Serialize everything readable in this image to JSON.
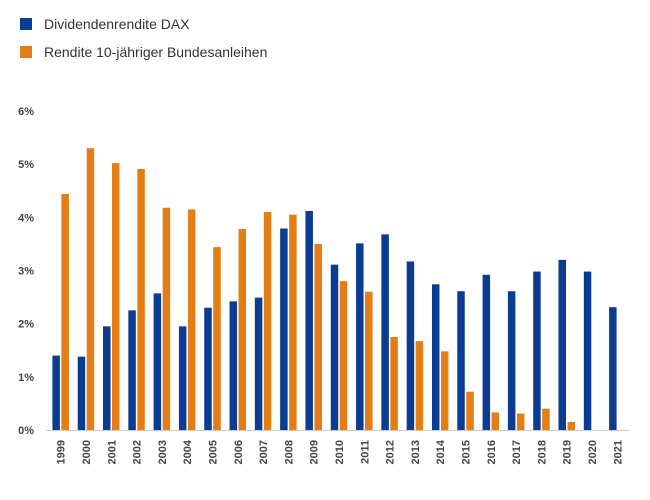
{
  "chart_data": {
    "type": "bar",
    "categories": [
      "1999",
      "2000",
      "2001",
      "2002",
      "2003",
      "2004",
      "2005",
      "2006",
      "2007",
      "2008",
      "2009",
      "2010",
      "2011",
      "2012",
      "2013",
      "2014",
      "2015",
      "2016",
      "2017",
      "2018",
      "2019",
      "2020",
      "2021"
    ],
    "series": [
      {
        "name": "Dividendenrendite DAX",
        "color": "#0a3d91",
        "values": [
          1.4,
          1.38,
          1.95,
          2.25,
          2.57,
          1.95,
          2.3,
          2.42,
          2.49,
          3.79,
          4.12,
          3.11,
          3.51,
          3.68,
          3.17,
          2.74,
          2.61,
          2.92,
          2.61,
          2.98,
          3.2,
          2.98,
          2.31
        ]
      },
      {
        "name": "Rendite 10-jähriger Bundesanleihen",
        "color": "#e37d15",
        "values": [
          4.44,
          5.3,
          5.02,
          4.91,
          4.18,
          4.15,
          3.44,
          3.78,
          4.1,
          4.05,
          3.5,
          2.8,
          2.6,
          1.75,
          1.67,
          1.48,
          0.72,
          0.33,
          0.31,
          0.4,
          0.15,
          null,
          null
        ]
      }
    ],
    "ylim": [
      0,
      6
    ],
    "yticks": [
      "0%",
      "1%",
      "2%",
      "3%",
      "4%",
      "5%",
      "6%"
    ],
    "legend_position": "top-left",
    "grid": false
  }
}
